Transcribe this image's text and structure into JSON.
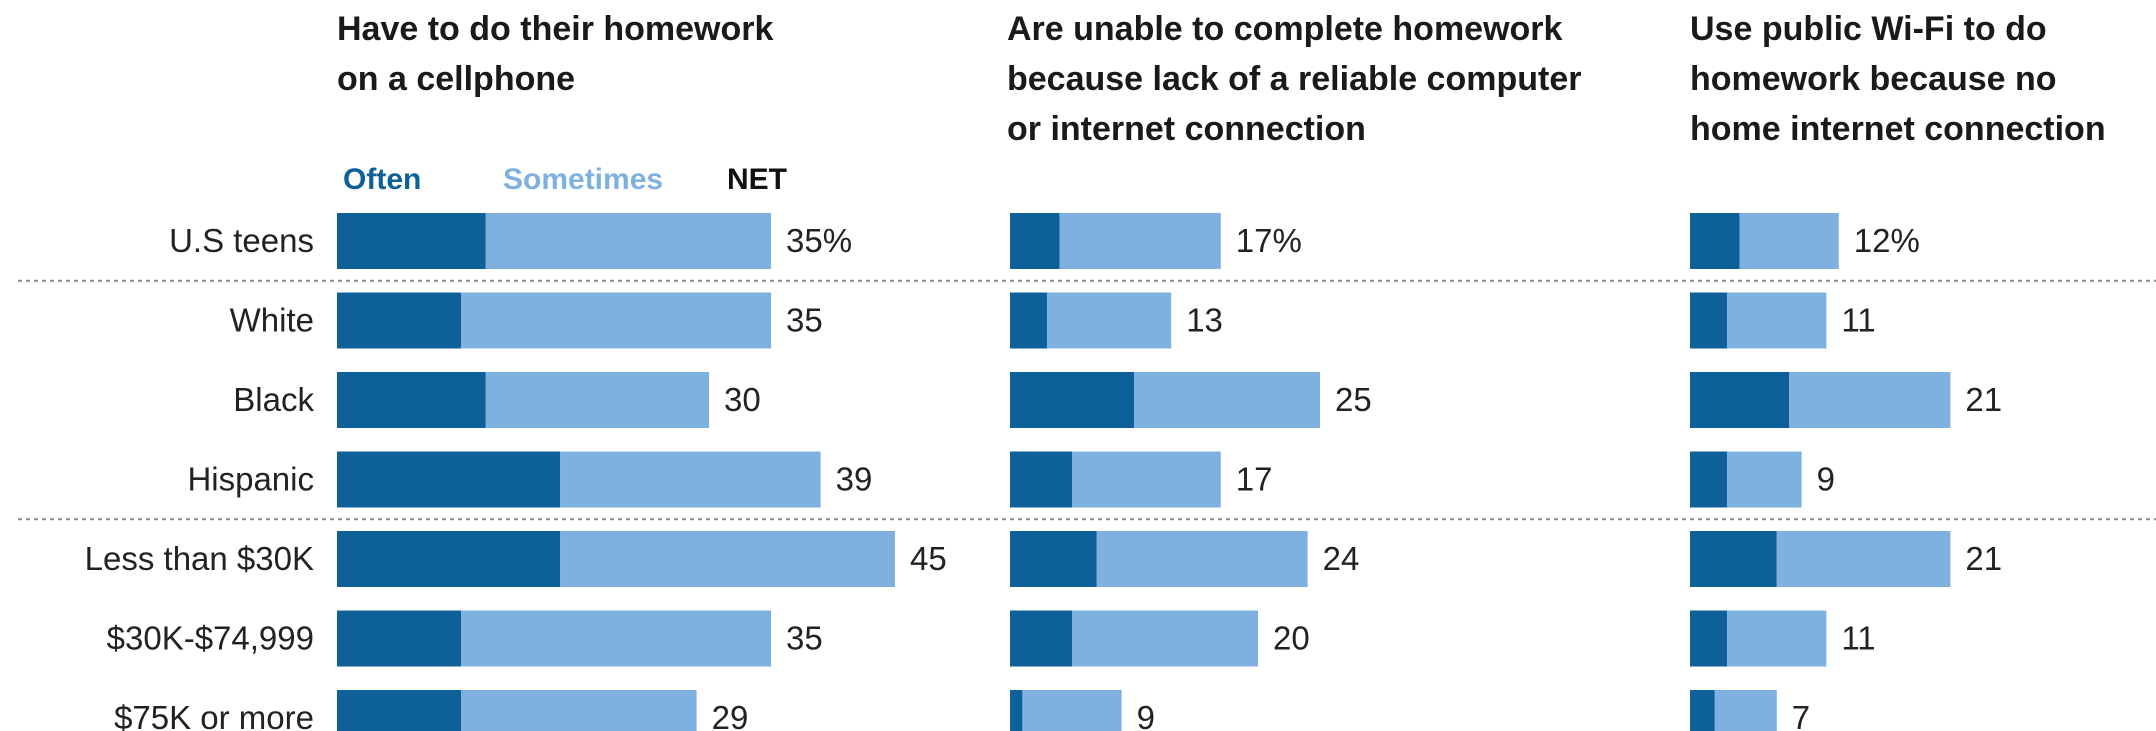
{
  "colors": {
    "often": "#0e6198",
    "sometimes": "#7fb1e0",
    "text": "#222222",
    "separator": "#888888"
  },
  "legend": {
    "often": "Often",
    "sometimes": "Sometimes",
    "net": "NET"
  },
  "chart_data": {
    "type": "bar",
    "stacked": true,
    "categories": [
      "U.S teens",
      "White",
      "Black",
      "Hispanic",
      "Less than $30K",
      "$30K-$74,999",
      "$75K or more"
    ],
    "value_labels_net": [
      [
        "35%",
        "35",
        "30",
        "39",
        "45",
        "35",
        "29"
      ],
      [
        "17%",
        "13",
        "25",
        "17",
        "24",
        "20",
        "9"
      ],
      [
        "12%",
        "11",
        "21",
        "9",
        "21",
        "11",
        "7"
      ]
    ],
    "panels": [
      {
        "title": [
          "Have to do their homework",
          "on a cellphone"
        ],
        "series": [
          {
            "name": "Often",
            "values": [
              12,
              10,
              12,
              18,
              18,
              10,
              10
            ]
          },
          {
            "name": "Sometimes",
            "values": [
              23,
              25,
              18,
              21,
              27,
              25,
              19
            ]
          }
        ],
        "net": [
          35,
          35,
          30,
          39,
          45,
          35,
          29
        ]
      },
      {
        "title": [
          "Are unable to complete homework",
          "because lack of a reliable computer",
          "or internet connection"
        ],
        "series": [
          {
            "name": "Often",
            "values": [
              4,
              3,
              10,
              5,
              7,
              5,
              1
            ]
          },
          {
            "name": "Sometimes",
            "values": [
              13,
              10,
              15,
              12,
              17,
              15,
              8
            ]
          }
        ],
        "net": [
          17,
          13,
          25,
          17,
          24,
          20,
          9
        ]
      },
      {
        "title": [
          "Use public Wi-Fi to do",
          "homework because no",
          "home internet connection"
        ],
        "series": [
          {
            "name": "Often",
            "values": [
              4,
              3,
              8,
              3,
              7,
              3,
              2
            ]
          },
          {
            "name": "Sometimes",
            "values": [
              8,
              8,
              13,
              6,
              14,
              8,
              5
            ]
          }
        ],
        "net": [
          12,
          11,
          21,
          9,
          21,
          11,
          7
        ]
      }
    ],
    "separators_after_rows": [
      0,
      3
    ],
    "xlim": [
      0,
      45
    ]
  }
}
